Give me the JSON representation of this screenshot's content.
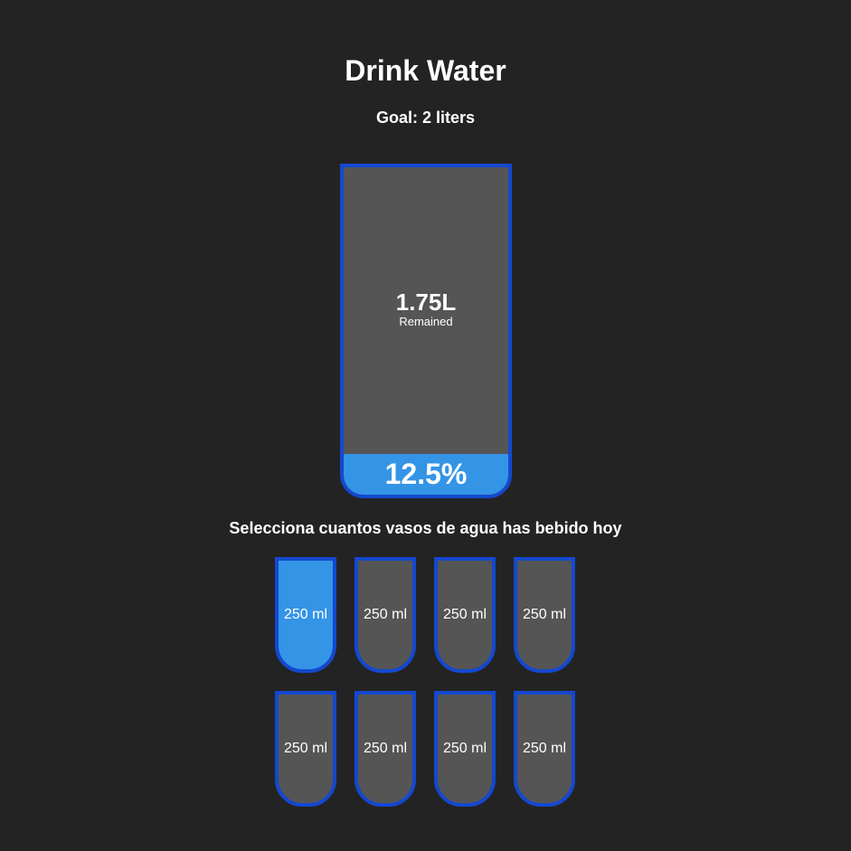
{
  "header": {
    "title": "Drink Water",
    "goal": "Goal: 2 liters"
  },
  "big_cup": {
    "remained_value": "1.75L",
    "remained_label": "Remained",
    "percentage_text": "12.5%",
    "fill_fraction": 0.125
  },
  "instruction": "Selecciona cuantos vasos de agua has bebido hoy",
  "cups": [
    {
      "label": "250 ml",
      "filled": true
    },
    {
      "label": "250 ml",
      "filled": false
    },
    {
      "label": "250 ml",
      "filled": false
    },
    {
      "label": "250 ml",
      "filled": false
    },
    {
      "label": "250 ml",
      "filled": false
    },
    {
      "label": "250 ml",
      "filled": false
    },
    {
      "label": "250 ml",
      "filled": false
    },
    {
      "label": "250 ml",
      "filled": false
    }
  ],
  "colors": {
    "background": "#232323",
    "cup_empty": "#555555",
    "water": "#3494e6",
    "border": "#1448cf",
    "text": "#ffffff"
  }
}
